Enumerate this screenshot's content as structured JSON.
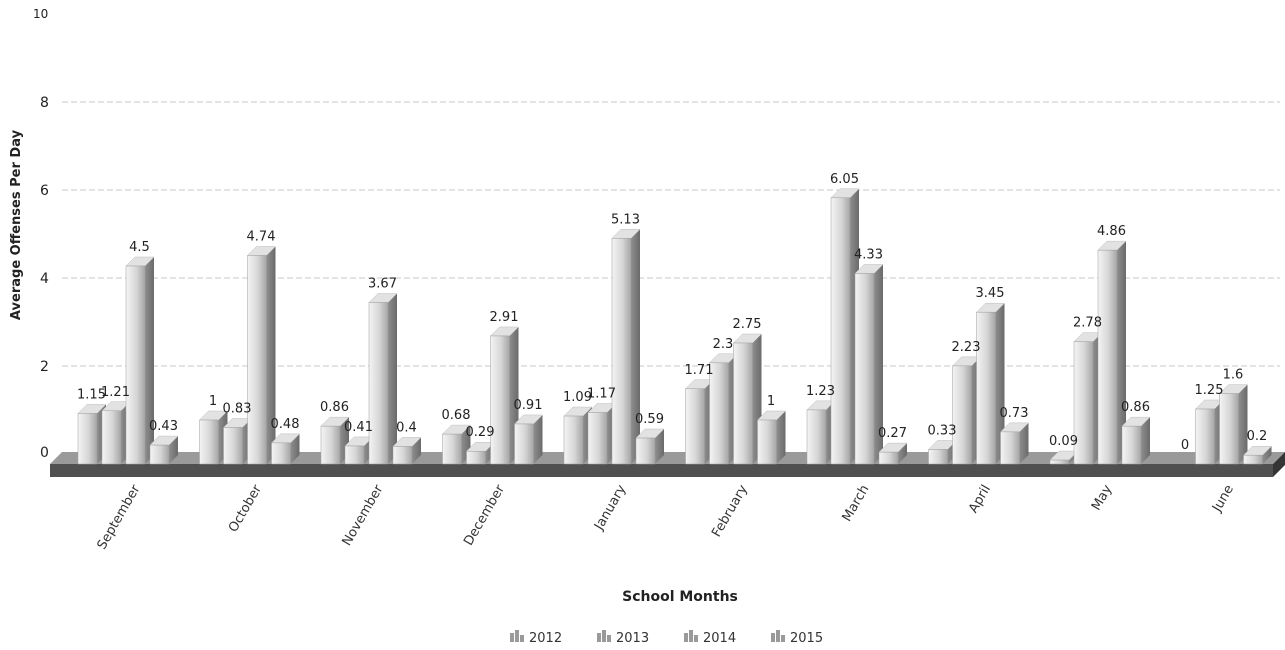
{
  "chart_data": {
    "type": "bar",
    "title": "",
    "xlabel": "School Months",
    "ylabel": "Average Offenses Per Day",
    "ylim": [
      0,
      10
    ],
    "yticks": [
      0,
      2,
      4,
      6,
      8,
      10
    ],
    "grid": true,
    "legend_position": "bottom-center",
    "categories": [
      "September",
      "October",
      "November",
      "December",
      "January",
      "February",
      "March",
      "April",
      "May",
      "June"
    ],
    "series": [
      {
        "name": "2012",
        "values": [
          1.15,
          1,
          0.86,
          0.68,
          1.09,
          1.71,
          1.23,
          0.33,
          0.09,
          0
        ]
      },
      {
        "name": "2013",
        "values": [
          1.21,
          0.83,
          0.41,
          0.29,
          1.17,
          2.3,
          6.05,
          2.23,
          2.78,
          1.25
        ]
      },
      {
        "name": "2014",
        "values": [
          4.5,
          4.74,
          3.67,
          2.91,
          5.13,
          2.75,
          4.33,
          3.45,
          4.86,
          1.6
        ]
      },
      {
        "name": "2015",
        "values": [
          0.43,
          0.48,
          0.4,
          0.91,
          0.59,
          1,
          0.27,
          0.73,
          0.86,
          0.2
        ]
      }
    ]
  }
}
